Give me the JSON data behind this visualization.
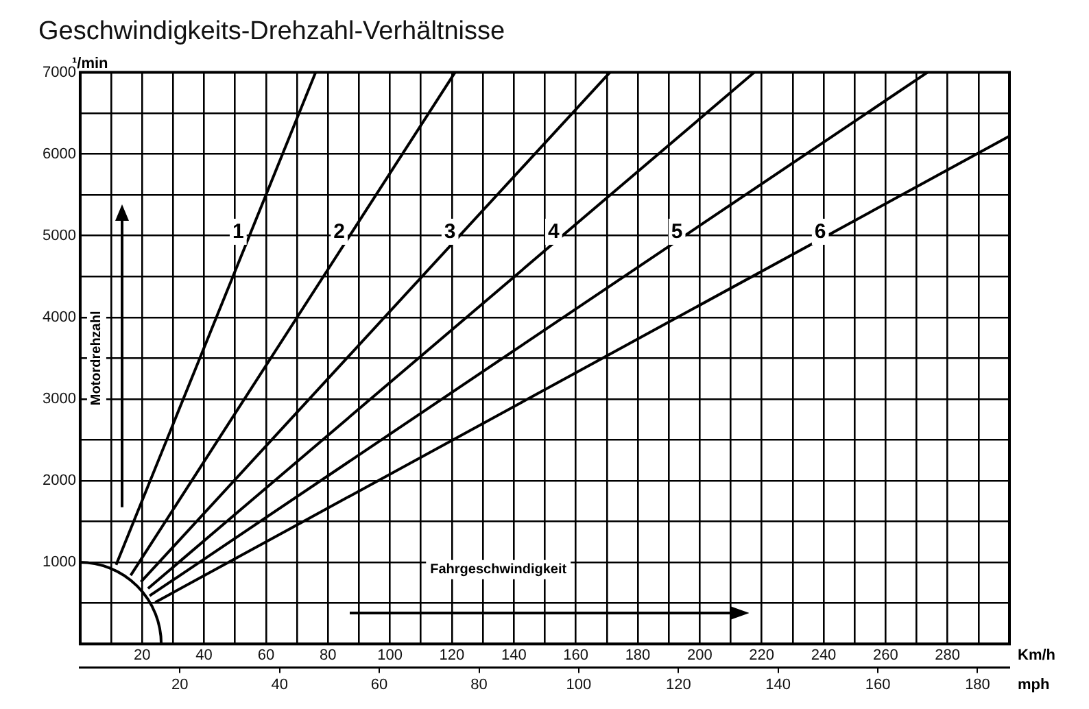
{
  "chart_data": {
    "type": "line",
    "title": "Geschwindigkeits-Drehzahl-Verhältnisse",
    "xlabel": "Km/h",
    "x2label": "mph",
    "ylabel": "Motordrehzahl",
    "annotations": [
      "¹/min",
      "Fahrgeschwindigkeit"
    ],
    "series": [
      {
        "name": "1",
        "color": "#000000",
        "x": [
          11.6,
          76
        ],
        "values": [
          970,
          7000
        ]
      },
      {
        "name": "2",
        "color": "#000000",
        "x": [
          16.3,
          121
        ],
        "values": [
          840,
          7000
        ]
      },
      {
        "name": "3",
        "color": "#000000",
        "x": [
          19.6,
          171
        ],
        "values": [
          760,
          7000
        ]
      },
      {
        "name": "4",
        "color": "#000000",
        "x": [
          21.9,
          217.6
        ],
        "values": [
          680,
          7000
        ]
      },
      {
        "name": "5",
        "color": "#000000",
        "x": [
          22.4,
          273.5
        ],
        "values": [
          590,
          7000
        ]
      },
      {
        "name": "6",
        "color": "#000000",
        "x": [
          24.2,
          300
        ],
        "values": [
          510,
          6220
        ]
      }
    ],
    "xlim": [
      0,
      300
    ],
    "xticks": [
      {
        "value": 0,
        "label": null
      },
      {
        "value": 10,
        "label": null
      },
      20,
      {
        "value": 30,
        "label": null
      },
      40,
      {
        "value": 50,
        "label": null
      },
      60,
      {
        "value": 70,
        "label": null
      },
      80,
      {
        "value": 90,
        "label": null
      },
      100,
      {
        "value": 110,
        "label": null
      },
      120,
      {
        "value": 130,
        "label": null
      },
      140,
      {
        "value": 150,
        "label": null
      },
      160,
      {
        "value": 170,
        "label": null
      },
      180,
      {
        "value": 190,
        "label": null
      },
      200,
      {
        "value": 210,
        "label": null
      },
      220,
      {
        "value": 230,
        "label": null
      },
      240,
      {
        "value": 250,
        "label": null
      },
      260,
      {
        "value": 270,
        "label": null
      },
      280,
      {
        "value": 290,
        "label": null
      },
      {
        "value": 300,
        "label": null
      }
    ],
    "x2lim": [
      0,
      186.4
    ],
    "x2ticks": [
      20,
      40,
      60,
      80,
      100,
      120,
      140,
      160,
      180
    ],
    "ylim": [
      0,
      7000
    ],
    "yticks": [
      {
        "value": 0,
        "label": null
      },
      {
        "value": 500,
        "label": null
      },
      1000,
      {
        "value": 1500,
        "label": null
      },
      2000,
      {
        "value": 2500,
        "label": null
      },
      3000,
      {
        "value": 3500,
        "label": null
      },
      4000,
      {
        "value": 4500,
        "label": null
      },
      5000,
      {
        "value": 5500,
        "label": null
      },
      6000,
      {
        "value": 6500,
        "label": null
      },
      7000
    ],
    "grid": true,
    "legend": false,
    "marker": "none",
    "line_style": "solid"
  }
}
